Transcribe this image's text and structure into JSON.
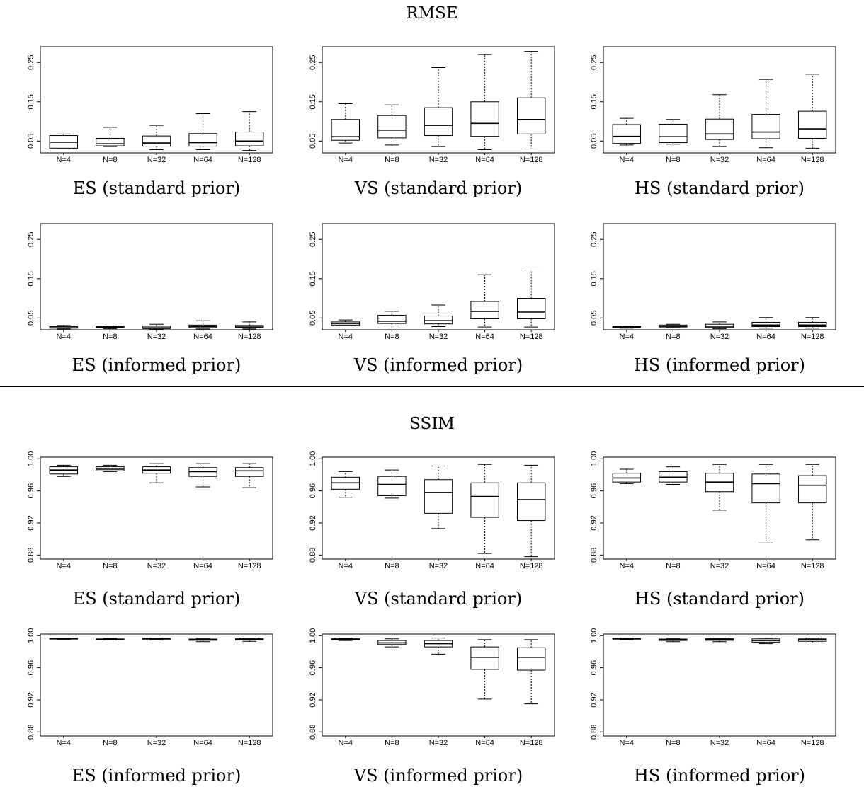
{
  "sections": [
    {
      "id": "rmse",
      "title": "RMSE"
    },
    {
      "id": "ssim",
      "title": "SSIM"
    }
  ],
  "chart_data": [
    {
      "type": "box",
      "section": "RMSE",
      "caption": "ES (standard prior)",
      "categories": [
        "N=4",
        "N=8",
        "N=32",
        "N=64",
        "N=128"
      ],
      "ylim": [
        0.02,
        0.29
      ],
      "yticks": [
        0.05,
        0.15,
        0.25
      ],
      "ytick_labels": [
        "0.05",
        "0.15",
        "0.25"
      ],
      "boxes": [
        {
          "whisker_low": 0.03,
          "q1": 0.032,
          "median": 0.047,
          "q3": 0.064,
          "whisker_high": 0.068
        },
        {
          "whisker_low": 0.036,
          "q1": 0.038,
          "median": 0.043,
          "q3": 0.057,
          "whisker_high": 0.085
        },
        {
          "whisker_low": 0.028,
          "q1": 0.037,
          "median": 0.045,
          "q3": 0.063,
          "whisker_high": 0.09
        },
        {
          "whisker_low": 0.028,
          "q1": 0.037,
          "median": 0.046,
          "q3": 0.069,
          "whisker_high": 0.12
        },
        {
          "whisker_low": 0.026,
          "q1": 0.038,
          "median": 0.05,
          "q3": 0.073,
          "whisker_high": 0.125
        }
      ]
    },
    {
      "type": "box",
      "section": "RMSE",
      "caption": "VS (standard prior)",
      "categories": [
        "N=4",
        "N=8",
        "N=32",
        "N=64",
        "N=128"
      ],
      "ylim": [
        0.02,
        0.29
      ],
      "yticks": [
        0.05,
        0.15,
        0.25
      ],
      "ytick_labels": [
        "0.05",
        "0.15",
        "0.25"
      ],
      "boxes": [
        {
          "whisker_low": 0.045,
          "q1": 0.052,
          "median": 0.061,
          "q3": 0.105,
          "whisker_high": 0.145
        },
        {
          "whisker_low": 0.04,
          "q1": 0.058,
          "median": 0.078,
          "q3": 0.115,
          "whisker_high": 0.142
        },
        {
          "whisker_low": 0.036,
          "q1": 0.064,
          "median": 0.09,
          "q3": 0.135,
          "whisker_high": 0.237
        },
        {
          "whisker_low": 0.028,
          "q1": 0.062,
          "median": 0.095,
          "q3": 0.15,
          "whisker_high": 0.27
        },
        {
          "whisker_low": 0.03,
          "q1": 0.068,
          "median": 0.105,
          "q3": 0.16,
          "whisker_high": 0.278
        }
      ]
    },
    {
      "type": "box",
      "section": "RMSE",
      "caption": "HS (standard prior)",
      "categories": [
        "N=4",
        "N=8",
        "N=32",
        "N=64",
        "N=128"
      ],
      "ylim": [
        0.02,
        0.29
      ],
      "yticks": [
        0.05,
        0.15,
        0.25
      ],
      "ytick_labels": [
        "0.05",
        "0.15",
        "0.25"
      ],
      "boxes": [
        {
          "whisker_low": 0.04,
          "q1": 0.044,
          "median": 0.062,
          "q3": 0.092,
          "whisker_high": 0.108
        },
        {
          "whisker_low": 0.042,
          "q1": 0.046,
          "median": 0.061,
          "q3": 0.093,
          "whisker_high": 0.105
        },
        {
          "whisker_low": 0.036,
          "q1": 0.054,
          "median": 0.068,
          "q3": 0.106,
          "whisker_high": 0.168
        },
        {
          "whisker_low": 0.033,
          "q1": 0.056,
          "median": 0.073,
          "q3": 0.118,
          "whisker_high": 0.207
        },
        {
          "whisker_low": 0.032,
          "q1": 0.057,
          "median": 0.081,
          "q3": 0.126,
          "whisker_high": 0.22
        }
      ]
    },
    {
      "type": "box",
      "section": "RMSE",
      "caption": "ES (informed prior)",
      "categories": [
        "N=4",
        "N=8",
        "N=32",
        "N=64",
        "N=128"
      ],
      "ylim": [
        0.02,
        0.29
      ],
      "yticks": [
        0.05,
        0.15,
        0.25
      ],
      "ytick_labels": [
        "0.05",
        "0.15",
        "0.25"
      ],
      "boxes": [
        {
          "whisker_low": 0.022,
          "q1": 0.024,
          "median": 0.025,
          "q3": 0.028,
          "whisker_high": 0.031
        },
        {
          "whisker_low": 0.023,
          "q1": 0.025,
          "median": 0.026,
          "q3": 0.028,
          "whisker_high": 0.03
        },
        {
          "whisker_low": 0.021,
          "q1": 0.023,
          "median": 0.025,
          "q3": 0.029,
          "whisker_high": 0.034
        },
        {
          "whisker_low": 0.022,
          "q1": 0.025,
          "median": 0.028,
          "q3": 0.032,
          "whisker_high": 0.043
        },
        {
          "whisker_low": 0.022,
          "q1": 0.025,
          "median": 0.027,
          "q3": 0.031,
          "whisker_high": 0.04
        }
      ]
    },
    {
      "type": "box",
      "section": "RMSE",
      "caption": "VS (informed prior)",
      "categories": [
        "N=4",
        "N=8",
        "N=32",
        "N=64",
        "N=128"
      ],
      "ylim": [
        0.02,
        0.29
      ],
      "yticks": [
        0.05,
        0.15,
        0.25
      ],
      "ytick_labels": [
        "0.05",
        "0.15",
        "0.25"
      ],
      "boxes": [
        {
          "whisker_low": 0.03,
          "q1": 0.032,
          "median": 0.036,
          "q3": 0.04,
          "whisker_high": 0.045
        },
        {
          "whisker_low": 0.03,
          "q1": 0.036,
          "median": 0.042,
          "q3": 0.057,
          "whisker_high": 0.067
        },
        {
          "whisker_low": 0.028,
          "q1": 0.035,
          "median": 0.043,
          "q3": 0.055,
          "whisker_high": 0.083
        },
        {
          "whisker_low": 0.027,
          "q1": 0.048,
          "median": 0.067,
          "q3": 0.092,
          "whisker_high": 0.16
        },
        {
          "whisker_low": 0.027,
          "q1": 0.048,
          "median": 0.065,
          "q3": 0.1,
          "whisker_high": 0.172
        }
      ]
    },
    {
      "type": "box",
      "section": "RMSE",
      "caption": "HS (informed prior)",
      "categories": [
        "N=4",
        "N=8",
        "N=32",
        "N=64",
        "N=128"
      ],
      "ylim": [
        0.02,
        0.29
      ],
      "yticks": [
        0.05,
        0.15,
        0.25
      ],
      "ytick_labels": [
        "0.05",
        "0.15",
        "0.25"
      ],
      "boxes": [
        {
          "whisker_low": 0.024,
          "q1": 0.026,
          "median": 0.027,
          "q3": 0.029,
          "whisker_high": 0.03
        },
        {
          "whisker_low": 0.025,
          "q1": 0.027,
          "median": 0.029,
          "q3": 0.032,
          "whisker_high": 0.034
        },
        {
          "whisker_low": 0.023,
          "q1": 0.026,
          "median": 0.029,
          "q3": 0.034,
          "whisker_high": 0.04
        },
        {
          "whisker_low": 0.024,
          "q1": 0.028,
          "median": 0.032,
          "q3": 0.039,
          "whisker_high": 0.051
        },
        {
          "whisker_low": 0.024,
          "q1": 0.028,
          "median": 0.032,
          "q3": 0.039,
          "whisker_high": 0.051
        }
      ]
    },
    {
      "type": "box",
      "section": "SSIM",
      "caption": "ES (standard prior)",
      "categories": [
        "N=4",
        "N=8",
        "N=32",
        "N=64",
        "N=128"
      ],
      "ylim": [
        0.875,
        1.002
      ],
      "yticks": [
        0.88,
        0.92,
        0.96,
        1.0
      ],
      "ytick_labels": [
        "0.88",
        "0.92",
        "0.96",
        "1.00"
      ],
      "boxes": [
        {
          "whisker_low": 0.978,
          "q1": 0.981,
          "median": 0.986,
          "q3": 0.99,
          "whisker_high": 0.992
        },
        {
          "whisker_low": 0.984,
          "q1": 0.985,
          "median": 0.987,
          "q3": 0.99,
          "whisker_high": 0.992
        },
        {
          "whisker_low": 0.97,
          "q1": 0.982,
          "median": 0.986,
          "q3": 0.99,
          "whisker_high": 0.994
        },
        {
          "whisker_low": 0.965,
          "q1": 0.978,
          "median": 0.984,
          "q3": 0.989,
          "whisker_high": 0.994
        },
        {
          "whisker_low": 0.964,
          "q1": 0.978,
          "median": 0.985,
          "q3": 0.989,
          "whisker_high": 0.994
        }
      ]
    },
    {
      "type": "box",
      "section": "SSIM",
      "caption": "VS (standard prior)",
      "categories": [
        "N=4",
        "N=8",
        "N=32",
        "N=64",
        "N=128"
      ],
      "ylim": [
        0.875,
        1.002
      ],
      "yticks": [
        0.88,
        0.92,
        0.96,
        1.0
      ],
      "ytick_labels": [
        "0.88",
        "0.92",
        "0.96",
        "1.00"
      ],
      "boxes": [
        {
          "whisker_low": 0.952,
          "q1": 0.962,
          "median": 0.97,
          "q3": 0.977,
          "whisker_high": 0.984
        },
        {
          "whisker_low": 0.951,
          "q1": 0.954,
          "median": 0.968,
          "q3": 0.978,
          "whisker_high": 0.986
        },
        {
          "whisker_low": 0.913,
          "q1": 0.932,
          "median": 0.958,
          "q3": 0.974,
          "whisker_high": 0.991
        },
        {
          "whisker_low": 0.882,
          "q1": 0.927,
          "median": 0.953,
          "q3": 0.97,
          "whisker_high": 0.993
        },
        {
          "whisker_low": 0.878,
          "q1": 0.923,
          "median": 0.949,
          "q3": 0.97,
          "whisker_high": 0.992
        }
      ]
    },
    {
      "type": "box",
      "section": "SSIM",
      "caption": "HS (standard prior)",
      "categories": [
        "N=4",
        "N=8",
        "N=32",
        "N=64",
        "N=128"
      ],
      "ylim": [
        0.875,
        1.002
      ],
      "yticks": [
        0.88,
        0.92,
        0.96,
        1.0
      ],
      "ytick_labels": [
        "0.88",
        "0.92",
        "0.96",
        "1.00"
      ],
      "boxes": [
        {
          "whisker_low": 0.969,
          "q1": 0.971,
          "median": 0.976,
          "q3": 0.982,
          "whisker_high": 0.987
        },
        {
          "whisker_low": 0.968,
          "q1": 0.971,
          "median": 0.977,
          "q3": 0.984,
          "whisker_high": 0.99
        },
        {
          "whisker_low": 0.936,
          "q1": 0.959,
          "median": 0.971,
          "q3": 0.982,
          "whisker_high": 0.993
        },
        {
          "whisker_low": 0.895,
          "q1": 0.945,
          "median": 0.969,
          "q3": 0.981,
          "whisker_high": 0.993
        },
        {
          "whisker_low": 0.899,
          "q1": 0.945,
          "median": 0.967,
          "q3": 0.979,
          "whisker_high": 0.993
        }
      ]
    },
    {
      "type": "box",
      "section": "SSIM",
      "caption": "ES (informed prior)",
      "categories": [
        "N=4",
        "N=8",
        "N=32",
        "N=64",
        "N=128"
      ],
      "ylim": [
        0.875,
        1.002
      ],
      "yticks": [
        0.88,
        0.92,
        0.96,
        1.0
      ],
      "ytick_labels": [
        "0.88",
        "0.92",
        "0.96",
        "1.00"
      ],
      "boxes": [
        {
          "whisker_low": 0.9955,
          "q1": 0.996,
          "median": 0.9963,
          "q3": 0.9966,
          "whisker_high": 0.9969
        },
        {
          "whisker_low": 0.9945,
          "q1": 0.9952,
          "median": 0.9956,
          "q3": 0.996,
          "whisker_high": 0.9966
        },
        {
          "whisker_low": 0.9948,
          "q1": 0.9956,
          "median": 0.9962,
          "q3": 0.9966,
          "whisker_high": 0.9972
        },
        {
          "whisker_low": 0.9925,
          "q1": 0.9942,
          "median": 0.995,
          "q3": 0.9958,
          "whisker_high": 0.9968
        },
        {
          "whisker_low": 0.993,
          "q1": 0.9945,
          "median": 0.9953,
          "q3": 0.9962,
          "whisker_high": 0.9972
        }
      ]
    },
    {
      "type": "box",
      "section": "SSIM",
      "caption": "VS (informed prior)",
      "categories": [
        "N=4",
        "N=8",
        "N=32",
        "N=64",
        "N=128"
      ],
      "ylim": [
        0.875,
        1.002
      ],
      "yticks": [
        0.88,
        0.92,
        0.96,
        1.0
      ],
      "ytick_labels": [
        "0.88",
        "0.92",
        "0.96",
        "1.00"
      ],
      "boxes": [
        {
          "whisker_low": 0.994,
          "q1": 0.995,
          "median": 0.9956,
          "q3": 0.9962,
          "whisker_high": 0.9968
        },
        {
          "whisker_low": 0.986,
          "q1": 0.989,
          "median": 0.991,
          "q3": 0.994,
          "whisker_high": 0.996
        },
        {
          "whisker_low": 0.977,
          "q1": 0.986,
          "median": 0.99,
          "q3": 0.994,
          "whisker_high": 0.997
        },
        {
          "whisker_low": 0.921,
          "q1": 0.958,
          "median": 0.973,
          "q3": 0.986,
          "whisker_high": 0.995
        },
        {
          "whisker_low": 0.915,
          "q1": 0.957,
          "median": 0.973,
          "q3": 0.985,
          "whisker_high": 0.995
        }
      ]
    },
    {
      "type": "box",
      "section": "SSIM",
      "caption": "HS (informed prior)",
      "categories": [
        "N=4",
        "N=8",
        "N=32",
        "N=64",
        "N=128"
      ],
      "ylim": [
        0.875,
        1.002
      ],
      "yticks": [
        0.88,
        0.92,
        0.96,
        1.0
      ],
      "ytick_labels": [
        "0.88",
        "0.92",
        "0.96",
        "1.00"
      ],
      "boxes": [
        {
          "whisker_low": 0.995,
          "q1": 0.9957,
          "median": 0.9961,
          "q3": 0.9965,
          "whisker_high": 0.997
        },
        {
          "whisker_low": 0.9925,
          "q1": 0.994,
          "median": 0.995,
          "q3": 0.9958,
          "whisker_high": 0.9968
        },
        {
          "whisker_low": 0.9925,
          "q1": 0.9942,
          "median": 0.9952,
          "q3": 0.9962,
          "whisker_high": 0.9972
        },
        {
          "whisker_low": 0.99,
          "q1": 0.992,
          "median": 0.994,
          "q3": 0.996,
          "whisker_high": 0.997
        },
        {
          "whisker_low": 0.991,
          "q1": 0.993,
          "median": 0.995,
          "q3": 0.996,
          "whisker_high": 0.997
        }
      ]
    }
  ]
}
